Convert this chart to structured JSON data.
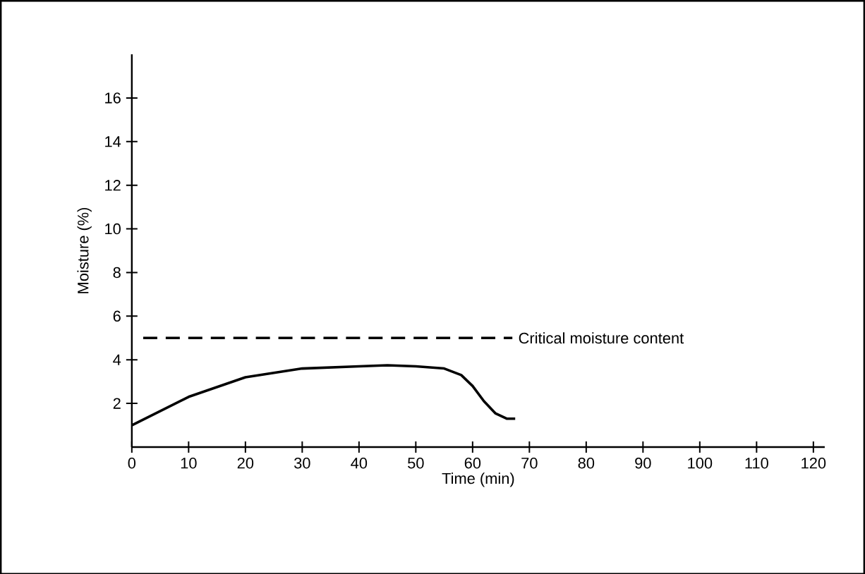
{
  "chart_data": {
    "type": "line",
    "xlabel": "Time (min)",
    "ylabel": "Moisture (%)",
    "xlim": [
      0,
      122
    ],
    "ylim": [
      0,
      18
    ],
    "xticks": [
      0,
      10,
      20,
      30,
      40,
      50,
      60,
      70,
      80,
      90,
      100,
      110,
      120
    ],
    "yticks": [
      {
        "value": 2,
        "label": "2"
      },
      {
        "value": 4,
        "label": "4"
      },
      {
        "value": 6,
        "label": "6"
      },
      {
        "value": 8,
        "label": "8"
      },
      {
        "value": 10,
        "label": "10"
      },
      {
        "value": 12,
        "label": "12"
      },
      {
        "value": 14,
        "label": "14"
      },
      {
        "value": 16,
        "label": "16"
      }
    ],
    "series": [
      {
        "color": "#000000",
        "x": [
          0,
          10,
          20,
          30,
          40,
          45,
          50,
          55,
          58,
          60,
          62,
          64,
          66,
          67.5
        ],
        "values": [
          1.0,
          2.3,
          3.2,
          3.6,
          3.7,
          3.75,
          3.7,
          3.6,
          3.3,
          2.8,
          2.1,
          1.55,
          1.3,
          1.3
        ]
      }
    ],
    "ref_lines": [
      {
        "axis": "y",
        "value": 5,
        "label": "Critical moisture content",
        "color": "#000000",
        "line_style": "dashed"
      }
    ],
    "grid": false,
    "marker": "none",
    "line_style": "solid"
  }
}
